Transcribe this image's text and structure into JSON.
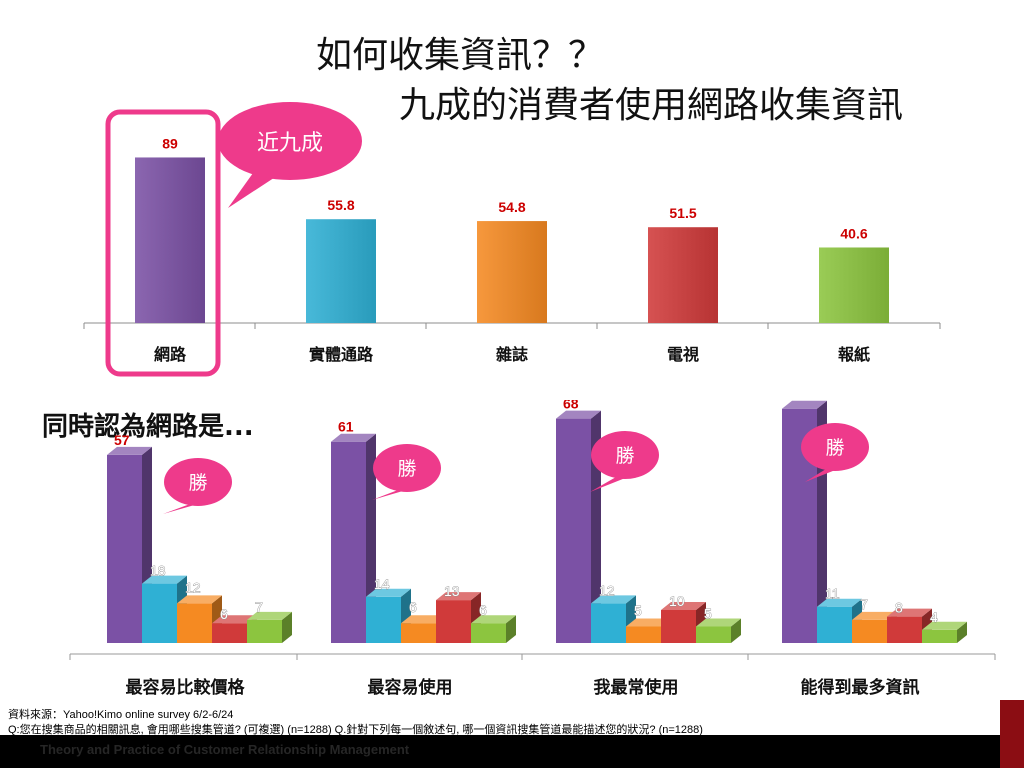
{
  "page": {
    "title_line1": "如何收集資訊？？",
    "title_line2": "九成的消費者使用網路收集資訊",
    "subheading": "同時認為網路是...",
    "source_line": "資料來源：Yahoo!Kimo online survey 6/2-6/24",
    "question_line": "Q:您在搜集商品的相關訊息, 會用哪些搜集管道?  (可複選) (n=1288)      Q.針對下列每一個敘述句, 哪一個資訊搜集管道最能描述您的狀況? (n=1288)",
    "footer_text": "Theory and Practice of Customer Relationship Management"
  },
  "colors": {
    "purple": "#7b51a5",
    "blue": "#2fb0d4",
    "orange": "#f58a22",
    "red": "#d03a3a",
    "green": "#8cc53f",
    "pink": "#ee3a8b",
    "value_label": "#cc0000"
  },
  "callouts": {
    "top": "近九成",
    "win": "勝"
  },
  "chart_data": [
    {
      "type": "bar",
      "categories": [
        "網路",
        "實體通路",
        "雜誌",
        "電視",
        "報紙"
      ],
      "values": [
        89,
        55.8,
        54.8,
        51.5,
        40.6
      ],
      "ylim": [
        0,
        100
      ],
      "highlighted_category": "網路"
    },
    {
      "type": "bar",
      "style": "3d-grouped",
      "categories": [
        "最容易比較價格",
        "最容易使用",
        "我最常使用",
        "能得到最多資訊"
      ],
      "series": [
        {
          "color": "purple",
          "values": [
            57,
            61,
            68,
            71
          ]
        },
        {
          "color": "blue",
          "values": [
            18,
            14,
            12,
            11
          ]
        },
        {
          "color": "orange",
          "values": [
            12,
            6,
            5,
            7
          ]
        },
        {
          "color": "red",
          "values": [
            6,
            13,
            10,
            8
          ]
        },
        {
          "color": "green",
          "values": [
            7,
            6,
            5,
            4
          ]
        }
      ],
      "ylim": [
        0,
        80
      ]
    }
  ]
}
